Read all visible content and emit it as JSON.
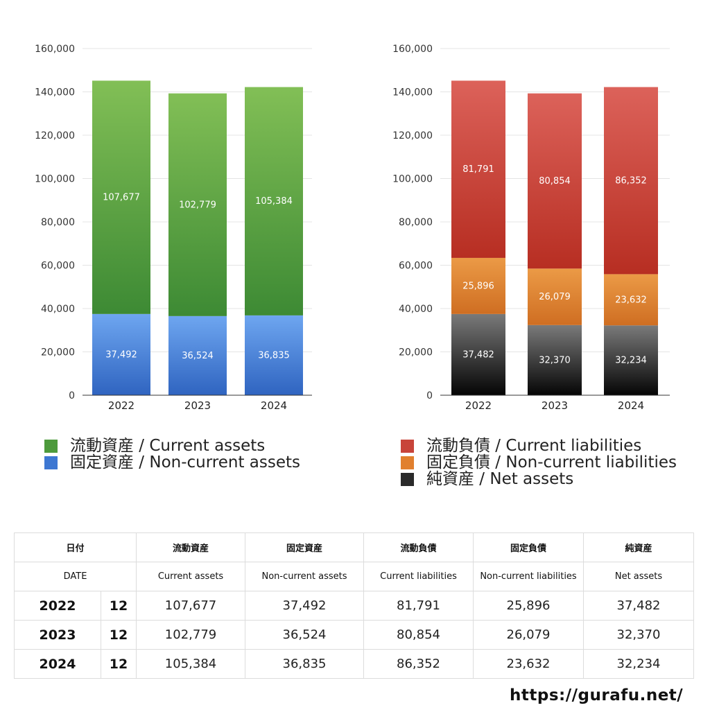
{
  "chart_data": [
    {
      "type": "bar",
      "stacked": true,
      "categories": [
        "2022",
        "2023",
        "2024"
      ],
      "ylim": [
        0,
        160000
      ],
      "yticks": [
        0,
        20000,
        40000,
        60000,
        80000,
        100000,
        120000,
        140000,
        160000
      ],
      "ytick_labels": [
        "0",
        "20,000",
        "40,000",
        "60,000",
        "80,000",
        "100,000",
        "120,000",
        "140,000",
        "160,000"
      ],
      "grid": true,
      "legend_position": "bottom",
      "series": [
        {
          "name": "固定資産 / Non-current assets",
          "values": [
            37492,
            36524,
            36835
          ],
          "labels": [
            "37,492",
            "36,524",
            "36,835"
          ],
          "color_top": "#6ea6f0",
          "color_bottom": "#2f64c0"
        },
        {
          "name": "流動資産 / Current assets",
          "values": [
            107677,
            102779,
            105384
          ],
          "labels": [
            "107,677",
            "102,779",
            "105,384"
          ],
          "color_top": "#82bf56",
          "color_bottom": "#3d8a34"
        }
      ],
      "legend_order": [
        1,
        0
      ]
    },
    {
      "type": "bar",
      "stacked": true,
      "categories": [
        "2022",
        "2023",
        "2024"
      ],
      "ylim": [
        0,
        160000
      ],
      "yticks": [
        0,
        20000,
        40000,
        60000,
        80000,
        100000,
        120000,
        140000,
        160000
      ],
      "ytick_labels": [
        "0",
        "20,000",
        "40,000",
        "60,000",
        "80,000",
        "100,000",
        "120,000",
        "140,000",
        "160,000"
      ],
      "grid": true,
      "legend_position": "bottom",
      "series": [
        {
          "name": "純資産 / Net assets",
          "values": [
            37482,
            32370,
            32234
          ],
          "labels": [
            "37,482",
            "32,370",
            "32,234"
          ],
          "color_top": "#7a7a7a",
          "color_bottom": "#050505"
        },
        {
          "name": "固定負債 / Non-current liabilities",
          "values": [
            25896,
            26079,
            23632
          ],
          "labels": [
            "25,896",
            "26,079",
            "23,632"
          ],
          "color_top": "#eb9a46",
          "color_bottom": "#cf6e22"
        },
        {
          "name": "流動負債 / Current liabilities",
          "values": [
            81791,
            80854,
            86352
          ],
          "labels": [
            "81,791",
            "80,854",
            "86,352"
          ],
          "color_top": "#dc625a",
          "color_bottom": "#b72e22"
        }
      ],
      "legend_order": [
        2,
        1,
        0
      ]
    }
  ],
  "legend_swatches": {
    "current_assets": "#4d9a3c",
    "non_current_assets": "#3d77d2",
    "current_liabilities": "#c8443a",
    "non_current_liabilities": "#e1802e",
    "net_assets": "#2a2a2a"
  },
  "table": {
    "header_jp": [
      "日付",
      "流動資産",
      "固定資産",
      "流動負債",
      "固定負債",
      "純資産"
    ],
    "header_en": [
      "DATE",
      "Current assets",
      "Non-current assets",
      "Current liabilities",
      "Non-current liabilities",
      "Net assets"
    ],
    "rows": [
      {
        "year": "2022",
        "month": "12",
        "values": [
          "107,677",
          "37,492",
          "81,791",
          "25,896",
          "37,482"
        ]
      },
      {
        "year": "2023",
        "month": "12",
        "values": [
          "102,779",
          "36,524",
          "80,854",
          "26,079",
          "32,370"
        ]
      },
      {
        "year": "2024",
        "month": "12",
        "values": [
          "105,384",
          "36,835",
          "86,352",
          "23,632",
          "32,234"
        ]
      }
    ]
  },
  "site_url": "https://gurafu.net/"
}
